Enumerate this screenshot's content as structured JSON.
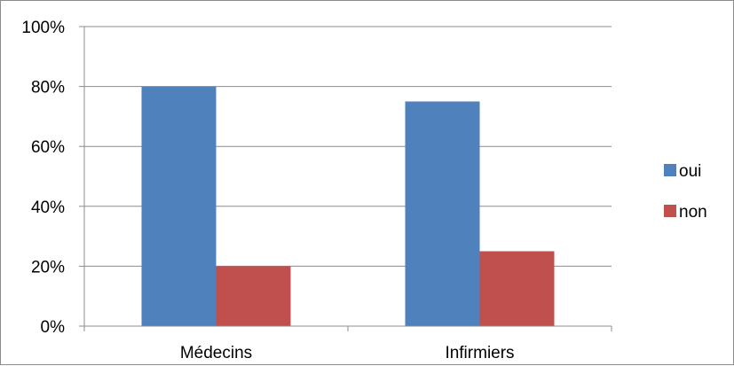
{
  "chart_data": {
    "type": "bar",
    "categories": [
      "Médecins",
      "Infirmiers"
    ],
    "series": [
      {
        "name": "oui",
        "values": [
          80,
          75
        ],
        "color": "#4f81bd"
      },
      {
        "name": "non",
        "values": [
          20,
          25
        ],
        "color": "#c0504d"
      }
    ],
    "yticks": [
      "0%",
      "20%",
      "40%",
      "60%",
      "80%",
      "100%"
    ],
    "ylim": [
      0,
      100
    ],
    "grid": true,
    "legend": "right",
    "title": "",
    "xlabel": "",
    "ylabel": ""
  }
}
